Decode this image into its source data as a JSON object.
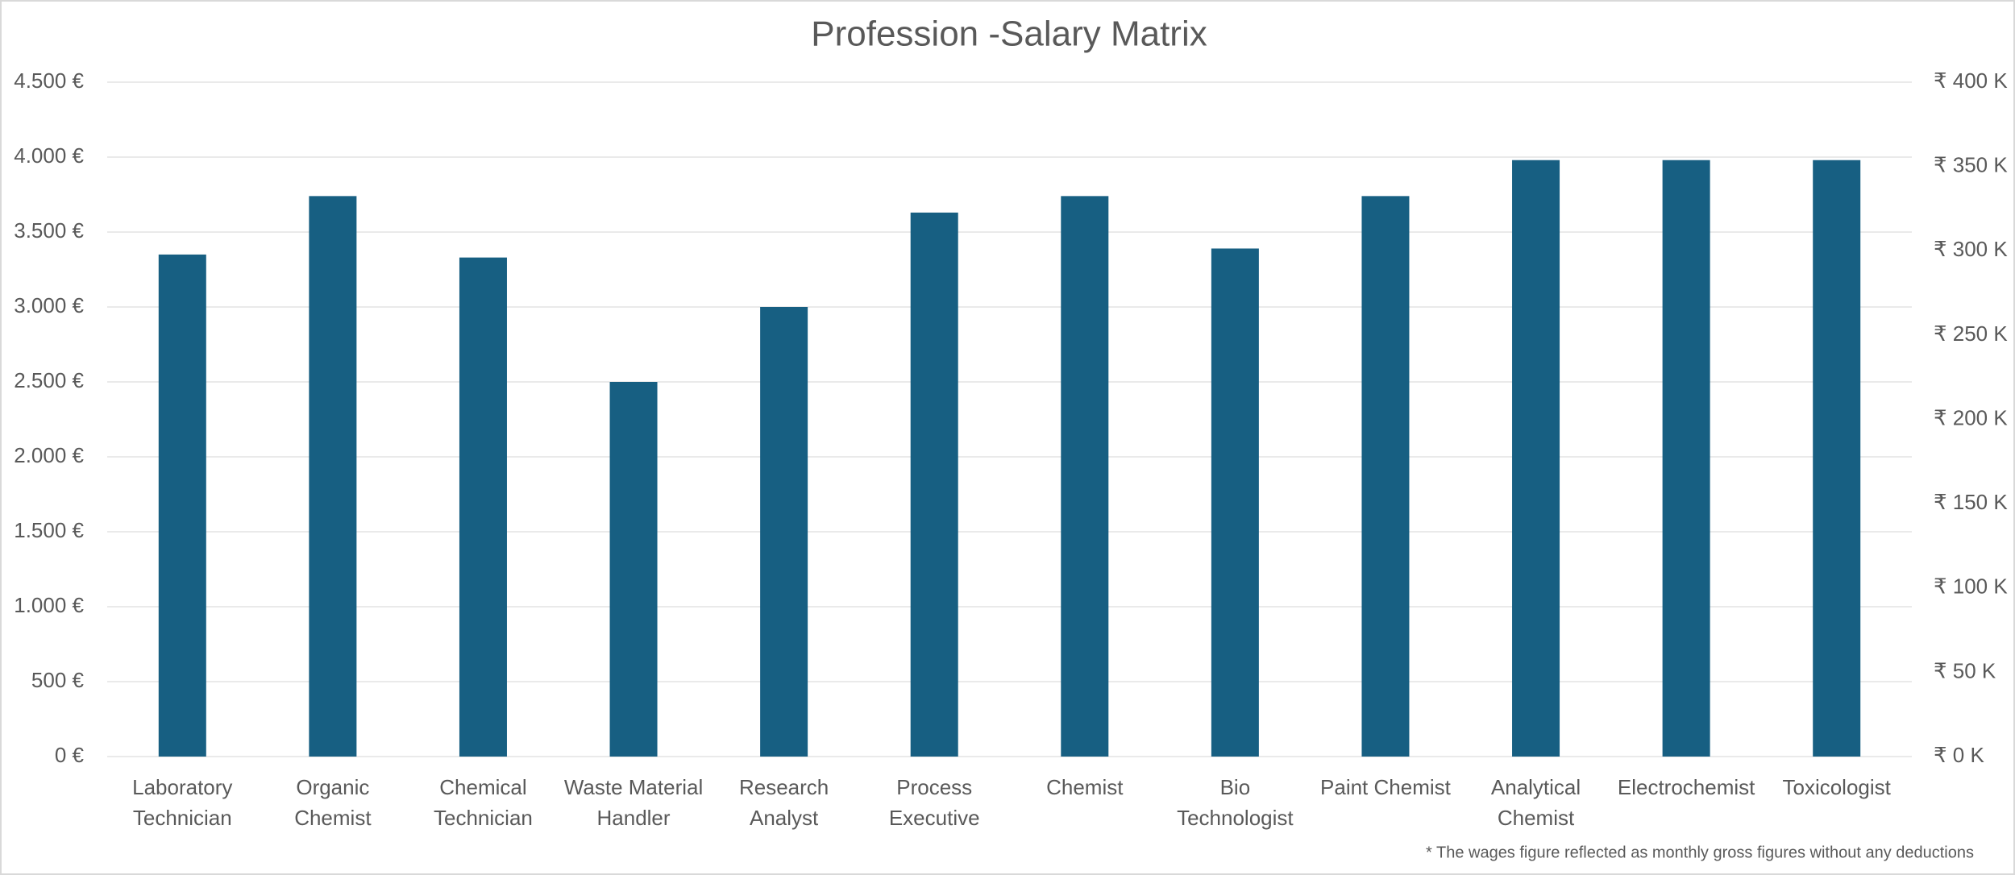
{
  "chart_data": {
    "type": "bar",
    "title": "Profession -Salary Matrix",
    "categories": [
      "Laboratory Technician",
      "Organic Chemist",
      "Chemical Technician",
      "Waste Material Handler",
      "Research Analyst",
      "Process Executive",
      "Chemist",
      "Bio Technologist",
      "Paint Chemist",
      "Analytical Chemist",
      "Electrochemist",
      "Toxicologist"
    ],
    "values": [
      3350,
      3740,
      3330,
      2500,
      3000,
      3630,
      3740,
      3390,
      3740,
      3980,
      3980,
      3980
    ],
    "color": "#175f82",
    "ylim": [
      0,
      4500
    ],
    "yticks": [
      {
        "value": 0,
        "label": "0 €"
      },
      {
        "value": 500,
        "label": "500 €"
      },
      {
        "value": 1000,
        "label": "1.000 €"
      },
      {
        "value": 1500,
        "label": "1.500 €"
      },
      {
        "value": 2000,
        "label": "2.000 €"
      },
      {
        "value": 2500,
        "label": "2.500 €"
      },
      {
        "value": 3000,
        "label": "3.000 €"
      },
      {
        "value": 3500,
        "label": "3.500 €"
      },
      {
        "value": 4000,
        "label": "4.000 €"
      },
      {
        "value": 4500,
        "label": "4.500 €"
      }
    ],
    "y2lim": [
      0,
      400000
    ],
    "y2ticks": [
      {
        "value": 0,
        "label": "₹ 0 K"
      },
      {
        "value": 50000,
        "label": "₹ 50 K"
      },
      {
        "value": 100000,
        "label": "₹ 100 K"
      },
      {
        "value": 150000,
        "label": "₹ 150 K"
      },
      {
        "value": 200000,
        "label": "₹ 200 K"
      },
      {
        "value": 250000,
        "label": "₹ 250 K"
      },
      {
        "value": 300000,
        "label": "₹ 300 K"
      },
      {
        "value": 350000,
        "label": "₹ 350 K"
      },
      {
        "value": 400000,
        "label": "₹ 400 K"
      }
    ],
    "grid": true,
    "annotation": "* The wages figure reflected as monthly gross figures without any deductions"
  }
}
